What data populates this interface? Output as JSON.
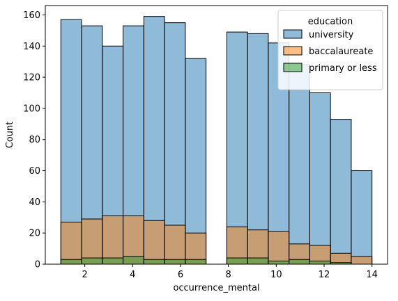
{
  "chart_data": {
    "type": "bar",
    "subtype": "histogram",
    "xlabel": "occurrence_mental",
    "ylabel": "Count",
    "xlim": [
      0.35,
      14.65
    ],
    "ylim": [
      0,
      166
    ],
    "xticks": [
      2,
      4,
      6,
      8,
      10,
      12,
      14
    ],
    "yticks": [
      0,
      20,
      40,
      60,
      80,
      100,
      120,
      140,
      160
    ],
    "grid": false,
    "bins": [
      [
        1,
        1.8667
      ],
      [
        1.8667,
        2.7333
      ],
      [
        2.7333,
        3.6
      ],
      [
        3.6,
        4.4667
      ],
      [
        4.4667,
        5.3333
      ],
      [
        5.3333,
        6.2
      ],
      [
        6.2,
        7.0667
      ],
      [
        7.0667,
        7.9333
      ],
      [
        7.9333,
        8.8
      ],
      [
        8.8,
        9.6667
      ],
      [
        9.6667,
        10.5333
      ],
      [
        10.5333,
        11.4
      ],
      [
        11.4,
        12.2667
      ],
      [
        12.2667,
        13.1333
      ],
      [
        13.1333,
        14
      ]
    ],
    "legend": {
      "title": "education",
      "placement": "top-right"
    },
    "series": [
      {
        "name": "university",
        "color": "#1f77b4",
        "values": [
          157,
          153,
          140,
          153,
          159,
          155,
          132,
          0,
          149,
          148,
          142,
          128,
          110,
          93,
          60
        ]
      },
      {
        "name": "baccalaureate",
        "color": "#ff7f0e",
        "values": [
          27,
          29,
          31,
          31,
          28,
          25,
          20,
          0,
          24,
          22,
          21,
          13,
          12,
          7,
          5
        ]
      },
      {
        "name": "primary or less",
        "color": "#2ca02c",
        "values": [
          3,
          4,
          4,
          5,
          3,
          3,
          3,
          0,
          4,
          4,
          2,
          3,
          2,
          1,
          0
        ]
      }
    ]
  }
}
